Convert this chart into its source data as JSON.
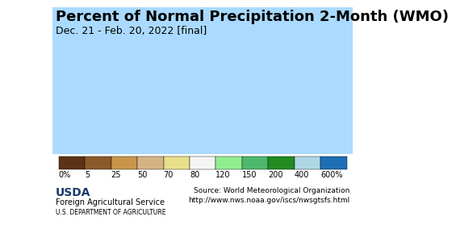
{
  "title": "Percent of Normal Precipitation 2-Month (WMO)",
  "subtitle": "Dec. 21 - Feb. 20, 2022 [final]",
  "colorbar_bounds": [
    0,
    5,
    25,
    50,
    70,
    80,
    120,
    150,
    200,
    400,
    600
  ],
  "colorbar_colors": [
    "#5c3317",
    "#8b5a2b",
    "#c8964a",
    "#d4b483",
    "#e8e08a",
    "#f5f5f5",
    "#90ee90",
    "#4db86e",
    "#228b22",
    "#add8e6",
    "#1e6eb5"
  ],
  "colorbar_labels": [
    "0%",
    "5",
    "25",
    "50",
    "70",
    "80",
    "120",
    "150",
    "200",
    "400",
    "600%"
  ],
  "background_color": "#aadaff",
  "map_background": "#aadaff",
  "title_fontsize": 13,
  "subtitle_fontsize": 9,
  "footer_left": "Foreign Agricultural Service\nU.S. DEPARTMENT OF AGRICULTURE",
  "footer_right": "Source: World Meteorological Organization\nhttp://www.nws.noaa.gov/iscs/nwsgtsfs.html",
  "usda_logo_color": "#1a5276",
  "footer_bg": "#d0d0d0"
}
